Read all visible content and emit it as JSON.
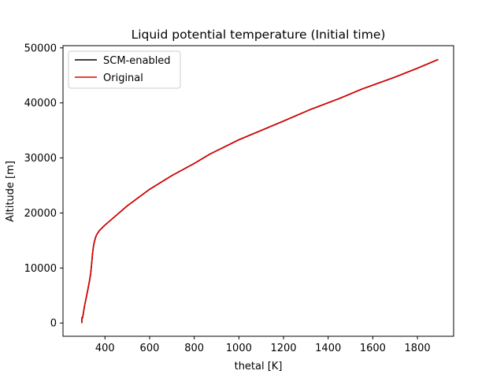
{
  "chart_data": {
    "type": "line",
    "title": "Liquid potential temperature (Initial time)",
    "xlabel": "thetal [K]",
    "ylabel": "Altitude [m]",
    "xlim": [
      212,
      1962
    ],
    "ylim": [
      -2400,
      50400
    ],
    "xticks": [
      400,
      600,
      800,
      1000,
      1200,
      1400,
      1600,
      1800
    ],
    "yticks": [
      0,
      10000,
      20000,
      30000,
      40000,
      50000
    ],
    "grid": false,
    "legend": {
      "position": "top-left"
    },
    "series": [
      {
        "name": "SCM-enabled",
        "color": "#000000",
        "x": [
          296,
          297,
          296,
          300,
          304,
          308,
          313,
          318,
          323,
          330,
          336,
          341,
          344,
          347,
          351,
          356,
          362,
          375,
          400,
          440,
          500,
          600,
          700,
          800,
          870,
          1000,
          1100,
          1200,
          1320,
          1450,
          1550,
          1700,
          1800,
          1893
        ],
        "y": [
          0,
          1000,
          900,
          1000,
          2000,
          3000,
          4000,
          5000,
          6000,
          7500,
          9000,
          11000,
          12500,
          13500,
          14500,
          15300,
          16000,
          16800,
          17800,
          19200,
          21300,
          24300,
          26800,
          29000,
          30700,
          33300,
          35000,
          36700,
          38800,
          40800,
          42500,
          44700,
          46300,
          47900
        ]
      },
      {
        "name": "Original",
        "color": "#dd0000",
        "x": [
          296,
          297,
          296,
          300,
          304,
          308,
          313,
          318,
          323,
          330,
          336,
          341,
          344,
          347,
          351,
          356,
          362,
          375,
          400,
          440,
          500,
          600,
          700,
          800,
          870,
          1000,
          1100,
          1200,
          1320,
          1450,
          1550,
          1700,
          1800,
          1893
        ],
        "y": [
          0,
          1000,
          900,
          1000,
          2000,
          3000,
          4000,
          5000,
          6000,
          7500,
          9000,
          11000,
          12500,
          13500,
          14500,
          15300,
          16000,
          16800,
          17800,
          19200,
          21300,
          24300,
          26800,
          29000,
          30700,
          33300,
          35000,
          36700,
          38800,
          40800,
          42500,
          44700,
          46300,
          47900
        ]
      }
    ]
  }
}
